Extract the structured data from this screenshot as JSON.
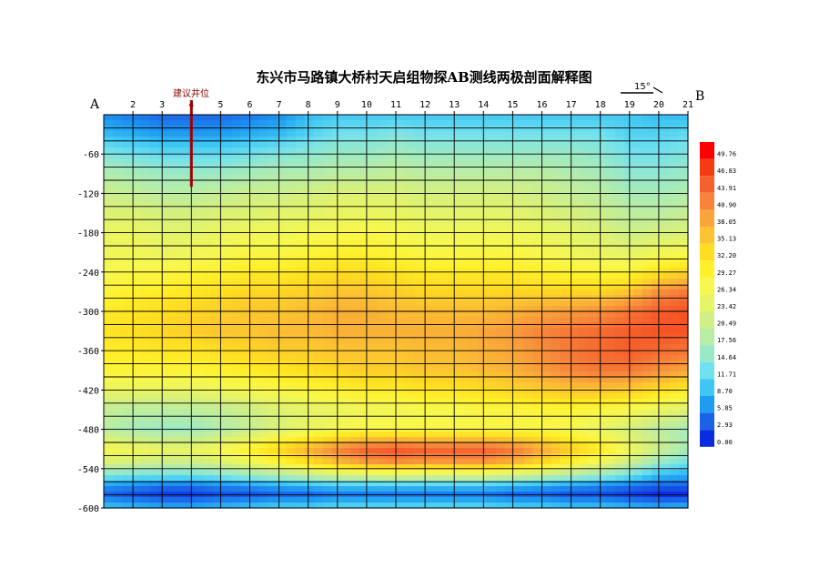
{
  "chart_data": {
    "type": "heatmap",
    "title": "东兴市马路镇大桥村天启组物探AB测线两极剖面解释图",
    "start_label": "A",
    "end_label": "B",
    "well_label": "建议井位",
    "well_station": 4,
    "well_depth": 110,
    "angle_label": "15°",
    "x_ticks": [
      2,
      3,
      4,
      5,
      6,
      7,
      8,
      9,
      10,
      11,
      12,
      13,
      14,
      15,
      16,
      17,
      18,
      19,
      20,
      21
    ],
    "xlim": [
      1,
      21
    ],
    "y_ticks": [
      -60,
      -120,
      -180,
      -240,
      -300,
      -360,
      -420,
      -480,
      -540,
      -600
    ],
    "ylim": [
      0,
      -600
    ],
    "legend_values": [
      "49.76",
      "46.83",
      "43.91",
      "40.90",
      "38.05",
      "35.13",
      "32.20",
      "29.27",
      "26.34",
      "23.42",
      "20.49",
      "17.56",
      "14.64",
      "11.71",
      "8.70",
      "5.85",
      "2.93",
      "0.00"
    ],
    "legend_colors": [
      "#ff0000",
      "#f73b11",
      "#f5602c",
      "#f7843a",
      "#f9a53a",
      "#fcc431",
      "#ffdd21",
      "#fff02b",
      "#f8f74d",
      "#e7f466",
      "#d1ef84",
      "#b8eda6",
      "#99e9c8",
      "#71e0ef",
      "#3fc7f3",
      "#1f9cf1",
      "#1a63e8",
      "#0a2ce0"
    ],
    "depths": [
      0,
      30,
      60,
      90,
      120,
      150,
      180,
      210,
      240,
      270,
      300,
      330,
      360,
      390,
      420,
      450,
      480,
      510,
      530,
      550,
      565,
      580,
      600
    ],
    "values": [
      [
        5,
        4,
        3,
        3,
        3,
        4,
        5,
        8,
        9,
        9,
        9,
        9,
        9,
        9,
        9,
        9,
        9,
        9,
        9,
        8,
        8
      ],
      [
        8,
        7,
        6,
        6,
        6,
        7,
        8,
        10,
        12,
        12,
        13,
        12,
        12,
        12,
        12,
        12,
        12,
        12,
        10,
        10,
        11
      ],
      [
        13,
        12,
        11,
        11,
        11,
        12,
        13,
        14,
        15,
        15,
        16,
        15,
        15,
        15,
        15,
        15,
        15,
        14,
        12,
        12,
        13
      ],
      [
        17,
        16,
        15,
        15,
        15,
        16,
        17,
        17,
        18,
        18,
        19,
        18,
        18,
        18,
        18,
        18,
        17,
        16,
        14,
        14,
        15
      ],
      [
        20,
        19,
        18,
        18,
        19,
        20,
        20,
        21,
        22,
        22,
        22,
        21,
        21,
        21,
        21,
        20,
        19,
        18,
        16,
        16,
        17
      ],
      [
        22,
        22,
        21,
        21,
        22,
        22,
        23,
        23,
        24,
        24,
        24,
        23,
        23,
        23,
        23,
        22,
        21,
        20,
        18,
        18,
        19
      ],
      [
        24,
        24,
        23,
        23,
        24,
        25,
        25,
        26,
        26,
        27,
        26,
        25,
        25,
        25,
        25,
        24,
        23,
        22,
        20,
        21,
        22
      ],
      [
        25,
        25,
        24,
        25,
        26,
        27,
        27,
        28,
        29,
        29,
        28,
        27,
        27,
        27,
        27,
        26,
        25,
        24,
        23,
        25,
        26
      ],
      [
        26,
        27,
        27,
        28,
        29,
        30,
        30,
        31,
        32,
        32,
        31,
        30,
        30,
        30,
        30,
        29,
        28,
        28,
        28,
        31,
        33
      ],
      [
        28,
        29,
        30,
        31,
        32,
        33,
        33,
        34,
        35,
        35,
        34,
        33,
        33,
        33,
        33,
        33,
        33,
        33,
        35,
        40,
        42
      ],
      [
        30,
        31,
        32,
        33,
        34,
        35,
        35,
        36,
        37,
        37,
        36,
        36,
        36,
        36,
        37,
        38,
        39,
        40,
        42,
        44,
        45
      ],
      [
        31,
        32,
        33,
        34,
        35,
        35,
        36,
        36,
        37,
        37,
        37,
        37,
        37,
        38,
        39,
        41,
        42,
        43,
        44,
        45,
        45
      ],
      [
        30,
        30,
        31,
        31,
        32,
        33,
        34,
        34,
        35,
        35,
        35,
        36,
        36,
        37,
        38,
        40,
        42,
        43,
        44,
        43,
        42
      ],
      [
        28,
        28,
        28,
        28,
        29,
        30,
        31,
        32,
        33,
        34,
        34,
        35,
        35,
        36,
        37,
        39,
        41,
        42,
        42,
        40,
        38
      ],
      [
        24,
        24,
        24,
        24,
        25,
        26,
        27,
        28,
        29,
        30,
        30,
        31,
        31,
        32,
        33,
        34,
        35,
        35,
        34,
        32,
        30
      ],
      [
        19,
        18,
        18,
        18,
        19,
        20,
        22,
        23,
        24,
        25,
        25,
        26,
        26,
        27,
        27,
        28,
        28,
        27,
        26,
        24,
        22
      ],
      [
        18,
        16,
        15,
        15,
        17,
        19,
        22,
        24,
        26,
        27,
        27,
        27,
        27,
        27,
        27,
        27,
        26,
        24,
        21,
        18,
        16
      ],
      [
        26,
        25,
        24,
        24,
        26,
        29,
        33,
        37,
        41,
        44,
        45,
        44,
        44,
        44,
        42,
        38,
        34,
        30,
        25,
        20,
        16
      ],
      [
        22,
        21,
        20,
        20,
        22,
        25,
        28,
        32,
        36,
        39,
        40,
        39,
        39,
        39,
        37,
        33,
        29,
        25,
        20,
        15,
        12
      ],
      [
        13,
        12,
        12,
        12,
        13,
        15,
        17,
        19,
        21,
        22,
        23,
        22,
        22,
        22,
        21,
        19,
        17,
        15,
        12,
        8,
        7
      ],
      [
        6,
        5,
        4,
        4,
        5,
        6,
        7,
        8,
        9,
        9,
        9,
        9,
        9,
        9,
        8,
        7,
        6,
        5,
        4,
        3,
        3
      ],
      [
        3,
        2,
        1,
        1,
        2,
        2,
        3,
        3,
        4,
        4,
        4,
        4,
        4,
        4,
        3,
        3,
        2,
        2,
        1,
        0,
        0
      ],
      [
        9,
        8,
        7,
        7,
        8,
        9,
        10,
        10,
        11,
        11,
        11,
        11,
        11,
        11,
        10,
        10,
        9,
        9,
        8,
        7,
        8
      ]
    ]
  }
}
